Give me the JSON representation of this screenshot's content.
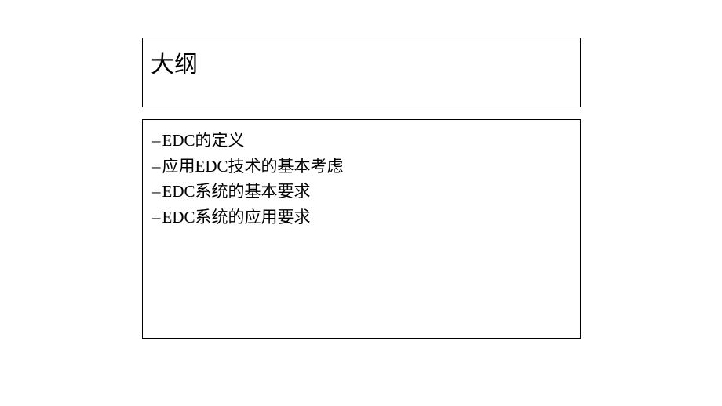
{
  "title": {
    "text": "大纲"
  },
  "content": {
    "items": [
      "EDC的定义",
      "应用EDC技术的基本考虑",
      "EDC系统的基本要求",
      "EDC系统的应用要求"
    ],
    "bullet_char": "–"
  },
  "styling": {
    "box_border_color": "#000000",
    "background_color": "#ffffff",
    "text_color": "#000000",
    "title_fontsize": 30,
    "item_fontsize": 21
  }
}
